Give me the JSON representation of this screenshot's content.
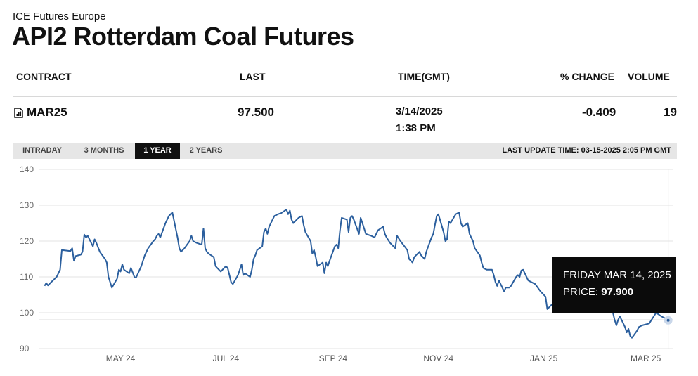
{
  "header": {
    "exchange": "ICE Futures Europe",
    "title": "API2 Rotterdam Coal Futures"
  },
  "table": {
    "columns": [
      "CONTRACT",
      "LAST",
      "TIME(GMT)",
      "% CHANGE",
      "VOLUME"
    ],
    "row": {
      "contract": "MAR25",
      "last": "97.500",
      "date": "3/14/2025",
      "time": "1:38 PM",
      "change": "-0.409",
      "volume": "19"
    }
  },
  "tabs": [
    "INTRADAY",
    "3 MONTHS",
    "1 YEAR",
    "2 YEARS"
  ],
  "active_tab": "1 YEAR",
  "last_update": "LAST UPDATE TIME: 03-15-2025 2:05 PM GMT",
  "tooltip": {
    "date": "FRIDAY MAR 14, 2025",
    "price_label": "PRICE:",
    "price_value": "97.900"
  },
  "colors": {
    "line": "#2b5f9e",
    "tooltip_bg": "#0b0b0b",
    "active_tab": "#111111"
  },
  "chart_data": {
    "type": "line",
    "title": "",
    "xlabel": "",
    "ylabel": "",
    "ylim": [
      90,
      140
    ],
    "yticks": [
      90,
      100,
      110,
      120,
      130,
      140
    ],
    "xlim": [
      "2024-03-15",
      "2025-03-17"
    ],
    "xticks": [
      {
        "date": "2024-05-01",
        "label": "MAY 24"
      },
      {
        "date": "2024-07-01",
        "label": "JUL 24"
      },
      {
        "date": "2024-09-01",
        "label": "SEP 24"
      },
      {
        "date": "2024-11-01",
        "label": "NOV 24"
      },
      {
        "date": "2025-01-01",
        "label": "JAN 25"
      },
      {
        "date": "2025-03-01",
        "label": "MAR 25"
      }
    ],
    "grid": true,
    "reference_line": 98,
    "series": [
      {
        "points": [
          [
            "2024-03-18",
            107.5
          ],
          [
            "2024-03-19",
            108.3
          ],
          [
            "2024-03-20",
            107.6
          ],
          [
            "2024-03-22",
            108.6
          ],
          [
            "2024-03-25",
            110.0
          ],
          [
            "2024-03-27",
            112.0
          ],
          [
            "2024-03-28",
            117.5
          ],
          [
            "2024-04-02",
            117.2
          ],
          [
            "2024-04-03",
            118.0
          ],
          [
            "2024-04-04",
            114.5
          ],
          [
            "2024-04-05",
            115.8
          ],
          [
            "2024-04-08",
            116.2
          ],
          [
            "2024-04-09",
            117.0
          ],
          [
            "2024-04-10",
            121.8
          ],
          [
            "2024-04-11",
            121.0
          ],
          [
            "2024-04-12",
            121.5
          ],
          [
            "2024-04-15",
            118.5
          ],
          [
            "2024-04-16",
            120.5
          ],
          [
            "2024-04-17",
            119.5
          ],
          [
            "2024-04-19",
            117.0
          ],
          [
            "2024-04-22",
            115.0
          ],
          [
            "2024-04-23",
            114.0
          ],
          [
            "2024-04-24",
            110.0
          ],
          [
            "2024-04-26",
            107.0
          ],
          [
            "2024-04-29",
            109.5
          ],
          [
            "2024-04-30",
            112.0
          ],
          [
            "2024-05-01",
            111.5
          ],
          [
            "2024-05-02",
            113.5
          ],
          [
            "2024-05-03",
            112.0
          ],
          [
            "2024-05-06",
            111.0
          ],
          [
            "2024-05-07",
            112.5
          ],
          [
            "2024-05-09",
            110.0
          ],
          [
            "2024-05-10",
            109.8
          ],
          [
            "2024-05-13",
            113.0
          ],
          [
            "2024-05-15",
            116.0
          ],
          [
            "2024-05-17",
            118.0
          ],
          [
            "2024-05-20",
            120.0
          ],
          [
            "2024-05-21",
            120.5
          ],
          [
            "2024-05-22",
            121.5
          ],
          [
            "2024-05-23",
            122.0
          ],
          [
            "2024-05-24",
            121.0
          ],
          [
            "2024-05-27",
            125.0
          ],
          [
            "2024-05-29",
            127.0
          ],
          [
            "2024-05-31",
            128.0
          ],
          [
            "2024-06-03",
            121.0
          ],
          [
            "2024-06-04",
            118.0
          ],
          [
            "2024-06-05",
            117.0
          ],
          [
            "2024-06-07",
            118.0
          ],
          [
            "2024-06-10",
            120.0
          ],
          [
            "2024-06-11",
            121.5
          ],
          [
            "2024-06-12",
            120.0
          ],
          [
            "2024-06-14",
            119.5
          ],
          [
            "2024-06-17",
            119.0
          ],
          [
            "2024-06-18",
            123.5
          ],
          [
            "2024-06-19",
            118.0
          ],
          [
            "2024-06-20",
            117.0
          ],
          [
            "2024-06-21",
            116.5
          ],
          [
            "2024-06-24",
            115.5
          ],
          [
            "2024-06-25",
            113.0
          ],
          [
            "2024-06-26",
            112.5
          ],
          [
            "2024-06-28",
            111.5
          ],
          [
            "2024-07-01",
            113.0
          ],
          [
            "2024-07-02",
            112.5
          ],
          [
            "2024-07-03",
            110.5
          ],
          [
            "2024-07-04",
            108.5
          ],
          [
            "2024-07-05",
            108.0
          ],
          [
            "2024-07-08",
            110.5
          ],
          [
            "2024-07-09",
            112.0
          ],
          [
            "2024-07-10",
            113.5
          ],
          [
            "2024-07-11",
            110.5
          ],
          [
            "2024-07-12",
            111.0
          ],
          [
            "2024-07-15",
            110.0
          ],
          [
            "2024-07-16",
            112.0
          ],
          [
            "2024-07-17",
            115.0
          ],
          [
            "2024-07-18",
            116.0
          ],
          [
            "2024-07-19",
            117.5
          ],
          [
            "2024-07-22",
            118.5
          ],
          [
            "2024-07-23",
            122.5
          ],
          [
            "2024-07-24",
            123.5
          ],
          [
            "2024-07-25",
            122.0
          ],
          [
            "2024-07-26",
            124.0
          ],
          [
            "2024-07-29",
            127.0
          ],
          [
            "2024-07-31",
            127.5
          ],
          [
            "2024-08-02",
            127.8
          ],
          [
            "2024-08-05",
            128.8
          ],
          [
            "2024-08-06",
            127.5
          ],
          [
            "2024-08-07",
            128.5
          ],
          [
            "2024-08-08",
            126.0
          ],
          [
            "2024-08-09",
            125.0
          ],
          [
            "2024-08-12",
            126.5
          ],
          [
            "2024-08-14",
            127.0
          ],
          [
            "2024-08-15",
            124.5
          ],
          [
            "2024-08-16",
            122.5
          ],
          [
            "2024-08-19",
            120.0
          ],
          [
            "2024-08-20",
            116.5
          ],
          [
            "2024-08-21",
            117.5
          ],
          [
            "2024-08-22",
            115.5
          ],
          [
            "2024-08-23",
            113.0
          ],
          [
            "2024-08-26",
            114.0
          ],
          [
            "2024-08-27",
            111.0
          ],
          [
            "2024-08-28",
            114.0
          ],
          [
            "2024-08-29",
            113.0
          ],
          [
            "2024-08-30",
            114.5
          ],
          [
            "2024-09-02",
            118.5
          ],
          [
            "2024-09-03",
            119.0
          ],
          [
            "2024-09-04",
            118.0
          ],
          [
            "2024-09-05",
            123.0
          ],
          [
            "2024-09-06",
            126.5
          ],
          [
            "2024-09-09",
            126.0
          ],
          [
            "2024-09-10",
            122.5
          ],
          [
            "2024-09-11",
            126.5
          ],
          [
            "2024-09-12",
            127.0
          ],
          [
            "2024-09-13",
            126.0
          ],
          [
            "2024-09-16",
            122.0
          ],
          [
            "2024-09-17",
            126.5
          ],
          [
            "2024-09-18",
            125.0
          ],
          [
            "2024-09-20",
            122.0
          ],
          [
            "2024-09-23",
            121.5
          ],
          [
            "2024-09-25",
            121.0
          ],
          [
            "2024-09-27",
            123.0
          ],
          [
            "2024-09-30",
            124.0
          ],
          [
            "2024-10-01",
            122.0
          ],
          [
            "2024-10-02",
            121.0
          ],
          [
            "2024-10-04",
            119.5
          ],
          [
            "2024-10-07",
            118.0
          ],
          [
            "2024-10-08",
            121.5
          ],
          [
            "2024-10-10",
            120.0
          ],
          [
            "2024-10-14",
            117.5
          ],
          [
            "2024-10-15",
            115.0
          ],
          [
            "2024-10-17",
            114.0
          ],
          [
            "2024-10-18",
            115.5
          ],
          [
            "2024-10-21",
            117.0
          ],
          [
            "2024-10-22",
            116.0
          ],
          [
            "2024-10-24",
            115.0
          ],
          [
            "2024-10-25",
            117.0
          ],
          [
            "2024-10-28",
            121.0
          ],
          [
            "2024-10-29",
            122.0
          ],
          [
            "2024-10-30",
            124.5
          ],
          [
            "2024-10-31",
            127.0
          ],
          [
            "2024-11-01",
            127.5
          ],
          [
            "2024-11-04",
            122.5
          ],
          [
            "2024-11-05",
            120.0
          ],
          [
            "2024-11-06",
            120.5
          ],
          [
            "2024-11-07",
            125.5
          ],
          [
            "2024-11-08",
            125.0
          ],
          [
            "2024-11-11",
            127.5
          ],
          [
            "2024-11-13",
            128.0
          ],
          [
            "2024-11-14",
            125.0
          ],
          [
            "2024-11-15",
            124.0
          ],
          [
            "2024-11-18",
            125.0
          ],
          [
            "2024-11-19",
            122.0
          ],
          [
            "2024-11-20",
            121.0
          ],
          [
            "2024-11-21",
            120.0
          ],
          [
            "2024-11-22",
            118.0
          ],
          [
            "2024-11-25",
            116.0
          ],
          [
            "2024-11-26",
            114.0
          ],
          [
            "2024-11-27",
            112.5
          ],
          [
            "2024-11-29",
            112.0
          ],
          [
            "2024-12-02",
            112.0
          ],
          [
            "2024-12-03",
            110.5
          ],
          [
            "2024-12-04",
            108.5
          ],
          [
            "2024-12-05",
            107.5
          ],
          [
            "2024-12-06",
            109.0
          ],
          [
            "2024-12-09",
            106.0
          ],
          [
            "2024-12-10",
            107.0
          ],
          [
            "2024-12-12",
            107.0
          ],
          [
            "2024-12-13",
            107.5
          ],
          [
            "2024-12-16",
            110.0
          ],
          [
            "2024-12-17",
            110.5
          ],
          [
            "2024-12-18",
            110.0
          ],
          [
            "2024-12-19",
            111.8
          ],
          [
            "2024-12-20",
            112.0
          ],
          [
            "2024-12-23",
            109.0
          ],
          [
            "2024-12-27",
            108.0
          ],
          [
            "2024-12-30",
            106.0
          ],
          [
            "2025-01-02",
            104.5
          ],
          [
            "2025-01-03",
            101.0
          ],
          [
            "2025-01-06",
            102.5
          ],
          [
            "2025-01-08",
            101.0
          ],
          [
            "2025-01-10",
            102.0
          ],
          [
            "2025-01-13",
            103.0
          ],
          [
            "2025-01-15",
            104.0
          ],
          [
            "2025-01-17",
            103.5
          ],
          [
            "2025-01-20",
            104.0
          ],
          [
            "2025-01-22",
            103.0
          ],
          [
            "2025-01-24",
            103.5
          ],
          [
            "2025-01-27",
            102.5
          ],
          [
            "2025-01-29",
            103.0
          ],
          [
            "2025-01-31",
            102.5
          ],
          [
            "2025-02-03",
            102.0
          ],
          [
            "2025-02-05",
            101.0
          ],
          [
            "2025-02-07",
            101.5
          ],
          [
            "2025-02-10",
            100.0
          ],
          [
            "2025-02-11",
            98.0
          ],
          [
            "2025-02-12",
            96.5
          ],
          [
            "2025-02-13",
            98.0
          ],
          [
            "2025-02-14",
            99.0
          ],
          [
            "2025-02-17",
            96.0
          ],
          [
            "2025-02-18",
            94.5
          ],
          [
            "2025-02-19",
            95.5
          ],
          [
            "2025-02-20",
            93.5
          ],
          [
            "2025-02-21",
            93.0
          ],
          [
            "2025-02-24",
            95.0
          ],
          [
            "2025-02-25",
            96.0
          ],
          [
            "2025-02-27",
            96.5
          ],
          [
            "2025-03-03",
            97.0
          ],
          [
            "2025-03-05",
            98.5
          ],
          [
            "2025-03-07",
            100.0
          ],
          [
            "2025-03-10",
            99.0
          ],
          [
            "2025-03-12",
            98.5
          ],
          [
            "2025-03-14",
            97.9
          ]
        ]
      }
    ]
  }
}
